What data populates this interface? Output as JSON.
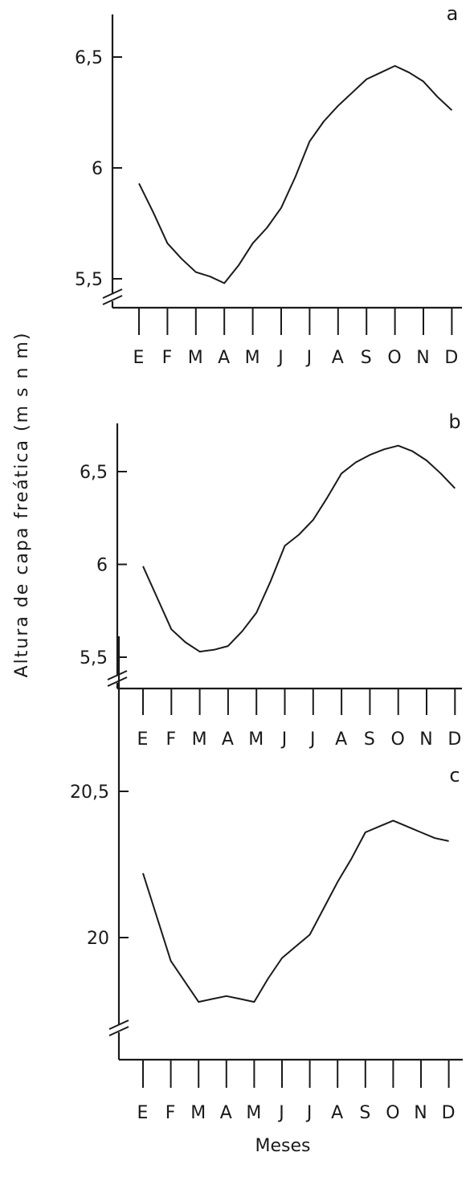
{
  "figure": {
    "ylabel": "Altura de capa freática (m s n m)",
    "xlabel": "Meses"
  },
  "chart_data": [
    {
      "type": "line",
      "panel_label": "a",
      "categories": [
        "E",
        "F",
        "M",
        "A",
        "M",
        "J",
        "J",
        "A",
        "S",
        "O",
        "N",
        "D"
      ],
      "x": [
        1,
        1.5,
        2,
        2.5,
        3,
        3.5,
        4,
        4.5,
        5,
        5.5,
        6,
        6.5,
        7,
        7.5,
        8,
        8.5,
        9,
        9.5,
        10,
        10.5,
        11,
        11.5,
        12
      ],
      "values": [
        5.93,
        5.8,
        5.66,
        5.59,
        5.53,
        5.51,
        5.48,
        5.56,
        5.66,
        5.73,
        5.82,
        5.96,
        6.12,
        6.21,
        6.28,
        6.34,
        6.4,
        6.43,
        6.46,
        6.43,
        6.39,
        6.32,
        6.26
      ],
      "yticks": [
        "6,5",
        "6",
        "5,5"
      ],
      "yticks_values": [
        6.5,
        6.0,
        5.5
      ],
      "ylim": [
        5.5,
        6.7
      ],
      "axis_break": true,
      "grid": false
    },
    {
      "type": "line",
      "panel_label": "b",
      "categories": [
        "E",
        "F",
        "M",
        "A",
        "M",
        "J",
        "J",
        "A",
        "S",
        "O",
        "N",
        "D"
      ],
      "x": [
        1,
        1.5,
        2,
        2.5,
        3,
        3.5,
        4,
        4.5,
        5,
        5.5,
        6,
        6.5,
        7,
        7.5,
        8,
        8.5,
        9,
        9.5,
        10,
        10.5,
        11,
        11.5,
        12
      ],
      "values": [
        5.99,
        5.82,
        5.65,
        5.58,
        5.53,
        5.54,
        5.56,
        5.64,
        5.74,
        5.91,
        6.1,
        6.16,
        6.24,
        6.36,
        6.49,
        6.55,
        6.59,
        6.62,
        6.64,
        6.61,
        6.56,
        6.49,
        6.41
      ],
      "yticks": [
        "6,5",
        "6",
        "5,5"
      ],
      "yticks_values": [
        6.5,
        6.0,
        5.5
      ],
      "ylim": [
        5.5,
        6.7
      ],
      "axis_break": true,
      "grid": false
    },
    {
      "type": "line",
      "panel_label": "c",
      "categories": [
        "E",
        "F",
        "M",
        "A",
        "M",
        "J",
        "J",
        "A",
        "S",
        "O",
        "N",
        "D"
      ],
      "x": [
        1,
        1.5,
        2,
        2.5,
        3,
        3.5,
        4,
        4.5,
        5,
        5.5,
        6,
        6.5,
        7,
        7.5,
        8,
        8.5,
        9,
        9.5,
        10,
        10.5,
        11,
        11.5,
        12
      ],
      "values": [
        20.22,
        20.07,
        19.92,
        19.85,
        19.78,
        19.79,
        19.8,
        19.79,
        19.78,
        19.86,
        19.93,
        19.97,
        20.01,
        20.1,
        20.19,
        20.27,
        20.36,
        20.38,
        20.4,
        20.38,
        20.36,
        20.34,
        20.33
      ],
      "yticks": [
        "20,5",
        "20"
      ],
      "yticks_values": [
        20.5,
        20.0
      ],
      "ylim": [
        19.6,
        20.6
      ],
      "axis_break": true,
      "grid": false
    }
  ]
}
